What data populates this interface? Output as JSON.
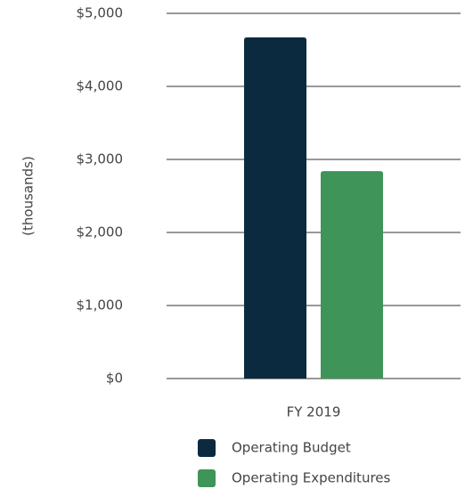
{
  "chart_data": {
    "type": "bar",
    "y_axis_label": "(thousands)",
    "categories": [
      "FY 2019"
    ],
    "series": [
      {
        "name": "Operating Budget",
        "color": "#0b2a40",
        "values": [
          4670
        ]
      },
      {
        "name": "Operating Expenditures",
        "color": "#3e9459",
        "values": [
          2840
        ]
      }
    ],
    "ylim": [
      0,
      5000
    ],
    "yticks": [
      {
        "value": 0,
        "label": "$0"
      },
      {
        "value": 1000,
        "label": "$1,000"
      },
      {
        "value": 2000,
        "label": "$2,000"
      },
      {
        "value": 3000,
        "label": "$3,000"
      },
      {
        "value": 4000,
        "label": "$4,000"
      },
      {
        "value": 5000,
        "label": "$5,000"
      }
    ],
    "grid": true,
    "legend": "bottom"
  }
}
